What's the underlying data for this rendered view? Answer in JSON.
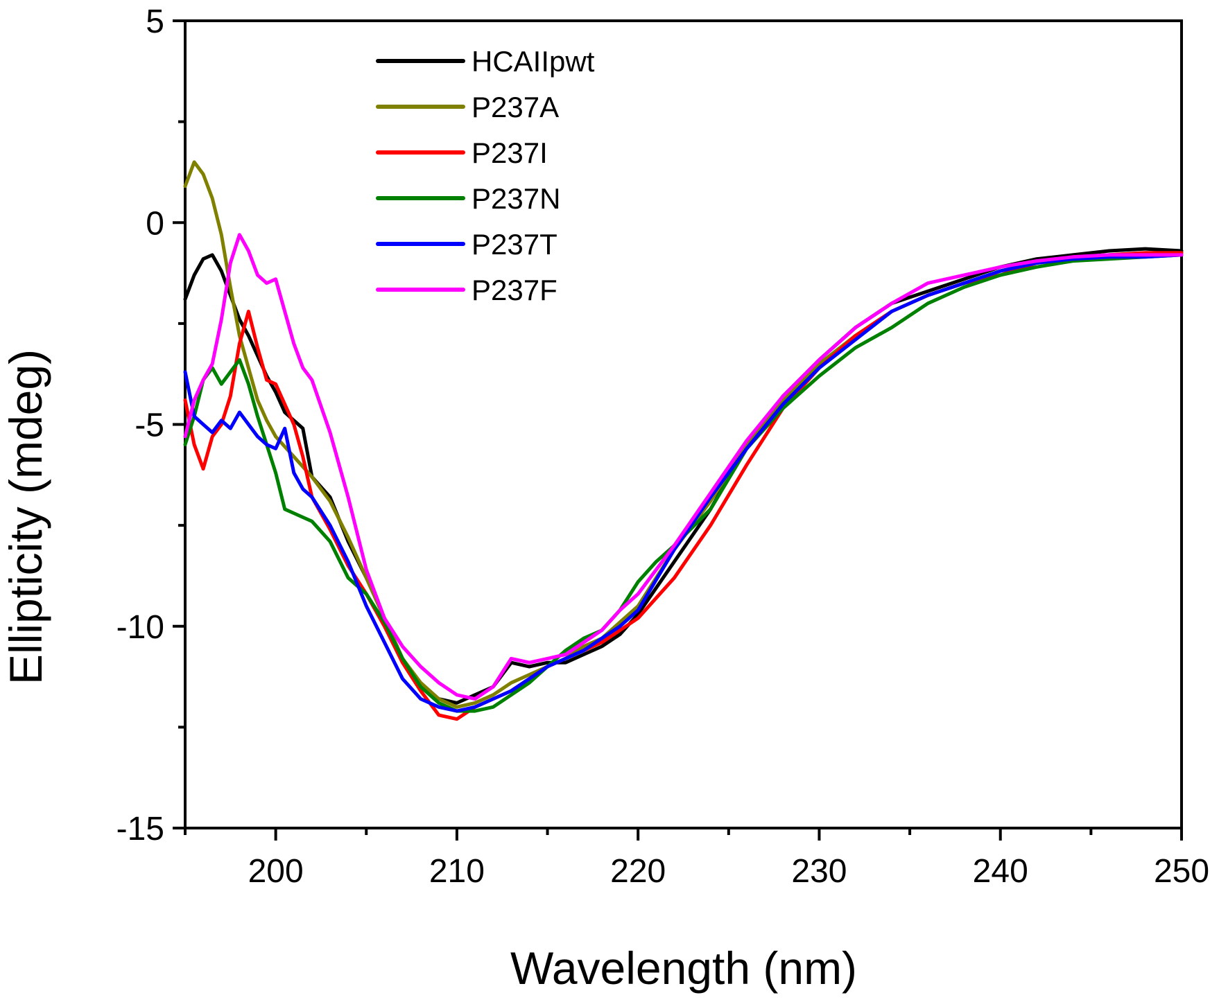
{
  "chart_data": {
    "type": "line",
    "title": "",
    "xlabel": "Wavelength (nm)",
    "ylabel": "Ellipticity (mdeg)",
    "xlim": [
      195,
      250
    ],
    "ylim": [
      -15,
      5
    ],
    "x_ticks": [
      200,
      210,
      220,
      230,
      240,
      250
    ],
    "x_tick_labels": [
      "200",
      "210",
      "220",
      "230",
      "240",
      "250"
    ],
    "y_ticks": [
      -15,
      -10,
      -5,
      0,
      5
    ],
    "y_tick_labels": [
      "-15",
      "-10",
      "-5",
      "0",
      "5"
    ],
    "grid": false,
    "legend_position": "top-left",
    "series": [
      {
        "name": "HCAIIpwt",
        "color": "#000000",
        "x": [
          195,
          195.5,
          196,
          196.5,
          197,
          197.5,
          198,
          198.5,
          199,
          199.5,
          200,
          200.5,
          201,
          201.5,
          202,
          203,
          204,
          205,
          206,
          207,
          208,
          209,
          210,
          211,
          212,
          213,
          214,
          215,
          216,
          217,
          218,
          219,
          220,
          222,
          224,
          226,
          228,
          230,
          232,
          234,
          236,
          238,
          240,
          242,
          244,
          246,
          248,
          250
        ],
        "values": [
          -1.9,
          -1.3,
          -0.9,
          -0.8,
          -1.2,
          -1.8,
          -2.4,
          -2.8,
          -3.3,
          -3.8,
          -4.2,
          -4.7,
          -4.9,
          -5.1,
          -6.3,
          -6.8,
          -7.9,
          -8.8,
          -9.8,
          -10.8,
          -11.5,
          -11.8,
          -11.9,
          -11.7,
          -11.5,
          -10.9,
          -11.0,
          -10.9,
          -10.9,
          -10.7,
          -10.5,
          -10.2,
          -9.7,
          -8.4,
          -7.1,
          -5.5,
          -4.3,
          -3.4,
          -2.6,
          -2.0,
          -1.7,
          -1.4,
          -1.1,
          -0.9,
          -0.8,
          -0.7,
          -0.65,
          -0.7
        ]
      },
      {
        "name": "P237A",
        "color": "#808000",
        "x": [
          195,
          195.5,
          196,
          196.5,
          197,
          197.5,
          198,
          198.5,
          199,
          199.5,
          200,
          201,
          202,
          203,
          204,
          205,
          206,
          207,
          208,
          209,
          210,
          211,
          212,
          213,
          214,
          215,
          216,
          217,
          218,
          219,
          220,
          222,
          224,
          226,
          228,
          230,
          232,
          234,
          236,
          238,
          240,
          242,
          244,
          246,
          248,
          250
        ],
        "values": [
          0.9,
          1.5,
          1.2,
          0.6,
          -0.3,
          -1.6,
          -2.8,
          -3.6,
          -4.4,
          -4.9,
          -5.3,
          -5.8,
          -6.3,
          -6.9,
          -7.8,
          -8.8,
          -9.8,
          -10.8,
          -11.4,
          -11.8,
          -12.0,
          -11.9,
          -11.7,
          -11.4,
          -11.2,
          -11.0,
          -10.8,
          -10.5,
          -10.3,
          -9.9,
          -9.5,
          -8.1,
          -6.9,
          -5.5,
          -4.4,
          -3.5,
          -2.8,
          -2.2,
          -1.8,
          -1.5,
          -1.2,
          -1.0,
          -0.9,
          -0.8,
          -0.75,
          -0.75
        ]
      },
      {
        "name": "P237I",
        "color": "#ff0000",
        "x": [
          195,
          195.5,
          196,
          196.5,
          197,
          197.5,
          198,
          198.5,
          199,
          199.5,
          200,
          200.5,
          201,
          201.5,
          202,
          203,
          204,
          205,
          206,
          207,
          208,
          209,
          210,
          211,
          212,
          213,
          214,
          215,
          216,
          217,
          218,
          219,
          220,
          222,
          224,
          226,
          228,
          230,
          232,
          234,
          236,
          238,
          240,
          242,
          244,
          246,
          248,
          250
        ],
        "values": [
          -4.4,
          -5.5,
          -6.1,
          -5.3,
          -5.0,
          -4.3,
          -3.0,
          -2.2,
          -3.1,
          -3.9,
          -4.0,
          -4.5,
          -5.0,
          -5.8,
          -6.8,
          -7.6,
          -8.5,
          -9.2,
          -10.0,
          -10.9,
          -11.6,
          -12.2,
          -12.3,
          -12.0,
          -11.8,
          -11.6,
          -11.3,
          -11.0,
          -10.8,
          -10.6,
          -10.4,
          -10.1,
          -9.8,
          -8.8,
          -7.5,
          -6.0,
          -4.6,
          -3.6,
          -2.8,
          -2.2,
          -1.8,
          -1.5,
          -1.3,
          -1.0,
          -0.85,
          -0.8,
          -0.75,
          -0.75
        ]
      },
      {
        "name": "P237N",
        "color": "#008000",
        "x": [
          195,
          195.5,
          196,
          196.5,
          197,
          197.5,
          198,
          198.5,
          199,
          199.5,
          200,
          200.5,
          201,
          201.5,
          202,
          203,
          204,
          205,
          206,
          207,
          208,
          209,
          210,
          211,
          212,
          213,
          214,
          215,
          216,
          217,
          218,
          219,
          220,
          221,
          222,
          224,
          226,
          228,
          230,
          232,
          234,
          236,
          238,
          240,
          242,
          244,
          246,
          248,
          250
        ],
        "values": [
          -5.5,
          -4.8,
          -3.9,
          -3.6,
          -4.0,
          -3.7,
          -3.4,
          -4.0,
          -4.8,
          -5.5,
          -6.2,
          -7.1,
          -7.2,
          -7.3,
          -7.4,
          -7.9,
          -8.8,
          -9.2,
          -9.9,
          -10.8,
          -11.5,
          -11.9,
          -12.1,
          -12.1,
          -12.0,
          -11.7,
          -11.4,
          -11.0,
          -10.6,
          -10.3,
          -10.1,
          -9.6,
          -8.9,
          -8.4,
          -8.0,
          -7.1,
          -5.6,
          -4.6,
          -3.8,
          -3.1,
          -2.6,
          -2.0,
          -1.6,
          -1.3,
          -1.1,
          -0.95,
          -0.9,
          -0.85,
          -0.8
        ]
      },
      {
        "name": "P237T",
        "color": "#0000ff",
        "x": [
          195,
          195.5,
          196,
          196.5,
          197,
          197.5,
          198,
          198.5,
          199,
          199.5,
          200,
          200.5,
          201,
          201.5,
          202,
          203,
          204,
          205,
          206,
          207,
          208,
          209,
          210,
          211,
          212,
          213,
          214,
          215,
          216,
          217,
          218,
          219,
          220,
          222,
          224,
          226,
          228,
          230,
          232,
          234,
          236,
          238,
          240,
          242,
          244,
          246,
          248,
          250
        ],
        "values": [
          -3.7,
          -4.8,
          -5.0,
          -5.2,
          -4.9,
          -5.1,
          -4.7,
          -5.0,
          -5.3,
          -5.5,
          -5.6,
          -5.1,
          -6.2,
          -6.6,
          -6.8,
          -7.5,
          -8.4,
          -9.5,
          -10.4,
          -11.3,
          -11.8,
          -12.0,
          -12.1,
          -12.0,
          -11.8,
          -11.6,
          -11.3,
          -11.0,
          -10.8,
          -10.6,
          -10.3,
          -10.0,
          -9.6,
          -8.1,
          -6.8,
          -5.6,
          -4.5,
          -3.6,
          -2.9,
          -2.2,
          -1.8,
          -1.5,
          -1.2,
          -1.0,
          -0.9,
          -0.85,
          -0.85,
          -0.8
        ]
      },
      {
        "name": "P237F",
        "color": "#ff00ff",
        "x": [
          195,
          195.5,
          196,
          196.5,
          197,
          197.5,
          198,
          198.5,
          199,
          199.5,
          200,
          200.5,
          201,
          201.5,
          202,
          203,
          204,
          205,
          206,
          207,
          208,
          209,
          210,
          211,
          212,
          213,
          214,
          215,
          216,
          217,
          218,
          219,
          220,
          222,
          224,
          226,
          228,
          230,
          232,
          234,
          236,
          238,
          240,
          242,
          244,
          246,
          248,
          250
        ],
        "values": [
          -5.3,
          -4.4,
          -3.9,
          -3.5,
          -2.4,
          -1.0,
          -0.3,
          -0.7,
          -1.3,
          -1.5,
          -1.4,
          -2.2,
          -3.0,
          -3.6,
          -3.9,
          -5.2,
          -6.8,
          -8.6,
          -9.8,
          -10.5,
          -11.0,
          -11.4,
          -11.7,
          -11.8,
          -11.5,
          -10.8,
          -10.9,
          -10.8,
          -10.7,
          -10.4,
          -10.1,
          -9.6,
          -9.2,
          -8.0,
          -6.7,
          -5.4,
          -4.3,
          -3.4,
          -2.6,
          -2.0,
          -1.5,
          -1.3,
          -1.1,
          -0.95,
          -0.85,
          -0.8,
          -0.8,
          -0.8
        ]
      }
    ]
  }
}
